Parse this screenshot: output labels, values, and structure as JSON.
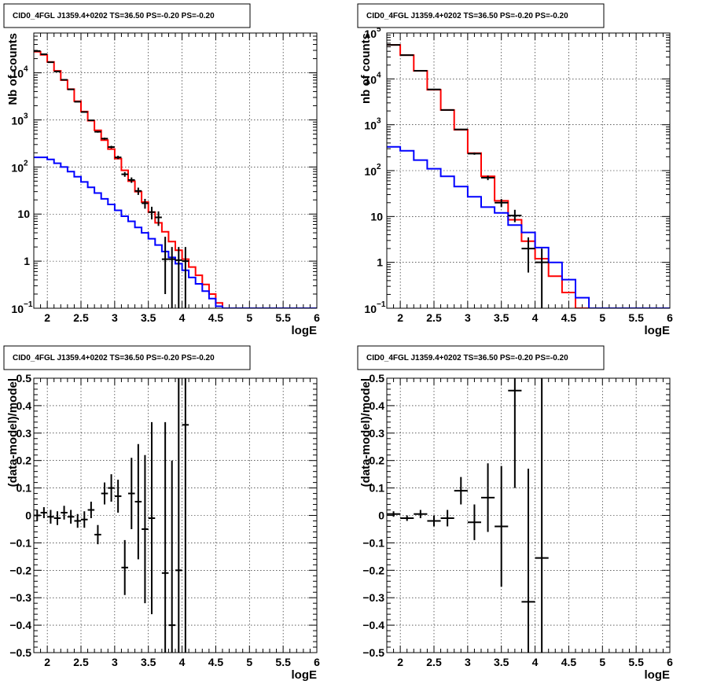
{
  "chart_data": [
    {
      "type": "line",
      "title": "CID0_4FGL J1359.4+0202 TS=36.50 PS=-0.20 PS=-0.20",
      "xlabel": "logE",
      "ylabel": "Nb of counts",
      "ylog": true,
      "xlim": [
        1.8,
        6.0
      ],
      "ylim": [
        0.1,
        70000
      ],
      "xticks": [
        "2",
        "2.5",
        "3",
        "3.5",
        "4",
        "4.5",
        "5",
        "5.5",
        "6"
      ],
      "yticks": [
        {
          "value": 0.1,
          "mant": "10",
          "exp": "−1"
        },
        {
          "value": 1,
          "mant": "1",
          "exp": ""
        },
        {
          "value": 10,
          "mant": "10",
          "exp": ""
        },
        {
          "value": 100,
          "mant": "10",
          "exp": "2"
        },
        {
          "value": 1000,
          "mant": "10",
          "exp": "3"
        },
        {
          "value": 10000,
          "mant": "10",
          "exp": "4"
        }
      ],
      "grid": true,
      "series": [
        {
          "color": "#ff0000",
          "style": "step",
          "edges": [
            1.8,
            1.9,
            2.0,
            2.1,
            2.2,
            2.3,
            2.4,
            2.5,
            2.6,
            2.7,
            2.8,
            2.9,
            3.0,
            3.1,
            3.2,
            3.3,
            3.4,
            3.5,
            3.6,
            3.7,
            3.8,
            3.9,
            4.0,
            4.1,
            4.2,
            4.3,
            4.4,
            4.5,
            4.6,
            4.7,
            4.8,
            4.9,
            5.0,
            5.1,
            5.2,
            5.3,
            5.4,
            5.5,
            5.6,
            5.7,
            5.8,
            5.9,
            6.0
          ],
          "values": [
            28000,
            24000,
            17000,
            11000,
            7000,
            4500,
            2500,
            1500,
            960,
            600,
            370,
            240,
            150,
            85,
            50,
            30,
            18,
            11,
            6.5,
            4.2,
            2.6,
            1.7,
            1.1,
            0.75,
            0.5,
            0.32,
            0.2,
            0.13,
            0.1,
            0.1,
            0.1,
            0.1,
            0.1,
            0.1,
            0.1,
            0.1,
            0.1,
            0.1,
            0.1,
            0.1,
            0.1,
            0.1
          ]
        },
        {
          "color": "#0000ff",
          "style": "step",
          "edges": [
            1.8,
            1.9,
            2.0,
            2.1,
            2.2,
            2.3,
            2.4,
            2.5,
            2.6,
            2.7,
            2.8,
            2.9,
            3.0,
            3.1,
            3.2,
            3.3,
            3.4,
            3.5,
            3.6,
            3.7,
            3.8,
            3.9,
            4.0,
            4.1,
            4.2,
            4.3,
            4.4,
            4.5,
            4.6,
            4.7,
            4.8,
            4.9,
            5.0,
            5.1,
            5.2,
            5.3,
            5.4,
            5.5,
            5.6,
            5.7,
            5.8,
            5.9,
            6.0
          ],
          "values": [
            160,
            160,
            145,
            120,
            100,
            80,
            62,
            48,
            37,
            28,
            21,
            16,
            12,
            9,
            7,
            5.2,
            4,
            3,
            2.2,
            1.6,
            1.2,
            0.88,
            0.64,
            0.45,
            0.33,
            0.23,
            0.16,
            0.11,
            0.1,
            0.1,
            0.1,
            0.1,
            0.1,
            0.1,
            0.1,
            0.1,
            0.1,
            0.1,
            0.1,
            0.1,
            0.1,
            0.1
          ]
        }
      ],
      "points": [
        {
          "x": 1.85,
          "y": 29000,
          "xerr": 0.05,
          "lo": 28700,
          "hi": 29300
        },
        {
          "x": 1.95,
          "y": 24800,
          "xerr": 0.05,
          "lo": 24500,
          "hi": 25100
        },
        {
          "x": 2.05,
          "y": 16800,
          "xerr": 0.05,
          "lo": 16500,
          "hi": 17100
        },
        {
          "x": 2.15,
          "y": 10700,
          "xerr": 0.05,
          "lo": 10500,
          "hi": 10900
        },
        {
          "x": 2.25,
          "y": 7100,
          "xerr": 0.05,
          "lo": 6950,
          "hi": 7250
        },
        {
          "x": 2.35,
          "y": 4450,
          "xerr": 0.05,
          "lo": 4350,
          "hi": 4550
        },
        {
          "x": 2.45,
          "y": 2430,
          "xerr": 0.05,
          "lo": 2380,
          "hi": 2480
        },
        {
          "x": 2.55,
          "y": 1470,
          "xerr": 0.05,
          "lo": 1430,
          "hi": 1510
        },
        {
          "x": 2.65,
          "y": 980,
          "xerr": 0.05,
          "lo": 950,
          "hi": 1010
        },
        {
          "x": 2.75,
          "y": 560,
          "xerr": 0.05,
          "lo": 535,
          "hi": 585
        },
        {
          "x": 2.85,
          "y": 400,
          "xerr": 0.05,
          "lo": 380,
          "hi": 420
        },
        {
          "x": 2.95,
          "y": 265,
          "xerr": 0.05,
          "lo": 248,
          "hi": 282
        },
        {
          "x": 3.05,
          "y": 160,
          "xerr": 0.05,
          "lo": 147,
          "hi": 173
        },
        {
          "x": 3.15,
          "y": 70,
          "xerr": 0.05,
          "lo": 62,
          "hi": 78
        },
        {
          "x": 3.25,
          "y": 53,
          "xerr": 0.05,
          "lo": 46,
          "hi": 60
        },
        {
          "x": 3.35,
          "y": 31,
          "xerr": 0.05,
          "lo": 25.5,
          "hi": 36.5
        },
        {
          "x": 3.45,
          "y": 17,
          "xerr": 0.05,
          "lo": 13,
          "hi": 21
        },
        {
          "x": 3.55,
          "y": 11,
          "xerr": 0.05,
          "lo": 7.7,
          "hi": 14.3
        },
        {
          "x": 3.65,
          "y": 8.5,
          "xerr": 0.05,
          "lo": 5.6,
          "hi": 11.4
        },
        {
          "x": 3.75,
          "y": 1.1,
          "xerr": 0.05,
          "lo": 0.2,
          "hi": 3.3
        },
        {
          "x": 3.85,
          "y": 1.1,
          "xerr": 0.05,
          "lo": 0.1,
          "hi": 2.0
        },
        {
          "x": 3.95,
          "y": 1.05,
          "xerr": 0.05,
          "lo": 0.1,
          "hi": 2.0
        },
        {
          "x": 4.05,
          "y": 1.0,
          "xerr": 0.05,
          "lo": 0.1,
          "hi": 2.0
        }
      ]
    },
    {
      "type": "line",
      "title": "CID0_4FGL J1359.4+0202 TS=36.50 PS=-0.20 PS=-0.20",
      "xlabel": "logE",
      "ylabel": "nb of counts",
      "ylog": true,
      "xlim": [
        1.8,
        6.0
      ],
      "ylim": [
        0.1,
        100000
      ],
      "xticks": [
        "2",
        "2.5",
        "3",
        "3.5",
        "4",
        "4.5",
        "5",
        "5.5",
        "6"
      ],
      "yticks": [
        {
          "value": 0.1,
          "mant": "10",
          "exp": "−1"
        },
        {
          "value": 1,
          "mant": "1",
          "exp": ""
        },
        {
          "value": 10,
          "mant": "10",
          "exp": ""
        },
        {
          "value": 100,
          "mant": "10",
          "exp": "2"
        },
        {
          "value": 1000,
          "mant": "10",
          "exp": "3"
        },
        {
          "value": 10000,
          "mant": "10",
          "exp": "4"
        },
        {
          "value": 100000,
          "mant": "10",
          "exp": "5"
        }
      ],
      "grid": true,
      "series": [
        {
          "color": "#ff0000",
          "style": "step",
          "edges": [
            1.8,
            2.0,
            2.2,
            2.4,
            2.6,
            2.8,
            3.0,
            3.2,
            3.4,
            3.6,
            3.8,
            4.0,
            4.2,
            4.4,
            4.6,
            4.8,
            5.0,
            5.2,
            5.4,
            5.6,
            5.8,
            6.0
          ],
          "values": [
            55000,
            33000,
            15000,
            5800,
            2100,
            780,
            240,
            75,
            22,
            8.5,
            2.9,
            1.2,
            0.5,
            0.22,
            0.1,
            0.1,
            0.1,
            0.1,
            0.1,
            0.1,
            0.1
          ]
        },
        {
          "color": "#0000ff",
          "style": "step",
          "edges": [
            1.8,
            2.0,
            2.2,
            2.4,
            2.6,
            2.8,
            3.0,
            3.2,
            3.4,
            3.6,
            3.8,
            4.0,
            4.2,
            4.4,
            4.6,
            4.8,
            5.0,
            5.2,
            5.4,
            5.6,
            5.8,
            6.0
          ],
          "values": [
            330,
            270,
            170,
            110,
            75,
            45,
            27,
            16,
            12,
            6.5,
            4.5,
            2.1,
            1.0,
            0.42,
            0.17,
            0.1,
            0.1,
            0.1,
            0.1,
            0.1,
            0.1
          ]
        }
      ],
      "points": [
        {
          "x": 1.9,
          "y": 55000,
          "xerr": 0.1,
          "lo": 54500,
          "hi": 55500
        },
        {
          "x": 2.1,
          "y": 33000,
          "xerr": 0.1,
          "lo": 32600,
          "hi": 33400
        },
        {
          "x": 2.3,
          "y": 15000,
          "xerr": 0.1,
          "lo": 14800,
          "hi": 15200
        },
        {
          "x": 2.5,
          "y": 5900,
          "xerr": 0.1,
          "lo": 5800,
          "hi": 6000
        },
        {
          "x": 2.7,
          "y": 2100,
          "xerr": 0.1,
          "lo": 2050,
          "hi": 2150
        },
        {
          "x": 2.9,
          "y": 790,
          "xerr": 0.1,
          "lo": 765,
          "hi": 815
        },
        {
          "x": 3.1,
          "y": 235,
          "xerr": 0.1,
          "lo": 222,
          "hi": 248
        },
        {
          "x": 3.3,
          "y": 70,
          "xerr": 0.1,
          "lo": 62,
          "hi": 78
        },
        {
          "x": 3.5,
          "y": 20,
          "xerr": 0.1,
          "lo": 16,
          "hi": 24
        },
        {
          "x": 3.7,
          "y": 10.5,
          "xerr": 0.1,
          "lo": 7.5,
          "hi": 14
        },
        {
          "x": 3.9,
          "y": 2.0,
          "xerr": 0.1,
          "lo": 0.6,
          "hi": 3.5
        },
        {
          "x": 4.1,
          "y": 1.0,
          "xerr": 0.1,
          "lo": 0.1,
          "hi": 2.0
        }
      ]
    },
    {
      "type": "scatter",
      "title": "CID0_4FGL J1359.4+0202 TS=36.50 PS=-0.20 PS=-0.20",
      "xlabel": "logE",
      "ylabel": "(data-model)/model",
      "ylog": false,
      "xlim": [
        1.8,
        6.0
      ],
      "ylim": [
        -0.5,
        0.5
      ],
      "xticks": [
        "2",
        "2.5",
        "3",
        "3.5",
        "4",
        "4.5",
        "5",
        "5.5",
        "6"
      ],
      "yticks": [
        "−0.5",
        "−0.4",
        "−0.3",
        "−0.2",
        "−0.1",
        "0",
        "0.1",
        "0.2",
        "0.3",
        "0.4",
        "0.5"
      ],
      "grid": true,
      "points": [
        {
          "x": 1.85,
          "y": 0.0,
          "xerr": 0.05,
          "lo": -0.02,
          "hi": 0.02
        },
        {
          "x": 1.95,
          "y": 0.01,
          "xerr": 0.05,
          "lo": -0.01,
          "hi": 0.03
        },
        {
          "x": 2.05,
          "y": -0.005,
          "xerr": 0.05,
          "lo": -0.03,
          "hi": 0.02
        },
        {
          "x": 2.15,
          "y": -0.01,
          "xerr": 0.05,
          "lo": -0.035,
          "hi": 0.015
        },
        {
          "x": 2.25,
          "y": 0.01,
          "xerr": 0.05,
          "lo": -0.015,
          "hi": 0.035
        },
        {
          "x": 2.35,
          "y": -0.005,
          "xerr": 0.05,
          "lo": -0.03,
          "hi": 0.02
        },
        {
          "x": 2.45,
          "y": -0.02,
          "xerr": 0.05,
          "lo": -0.045,
          "hi": 0.005
        },
        {
          "x": 2.55,
          "y": -0.015,
          "xerr": 0.05,
          "lo": -0.045,
          "hi": 0.015
        },
        {
          "x": 2.65,
          "y": 0.02,
          "xerr": 0.05,
          "lo": -0.01,
          "hi": 0.05
        },
        {
          "x": 2.75,
          "y": -0.07,
          "xerr": 0.05,
          "lo": -0.105,
          "hi": -0.035
        },
        {
          "x": 2.85,
          "y": 0.08,
          "xerr": 0.05,
          "lo": 0.04,
          "hi": 0.12
        },
        {
          "x": 2.95,
          "y": 0.1,
          "xerr": 0.05,
          "lo": 0.05,
          "hi": 0.15
        },
        {
          "x": 3.05,
          "y": 0.07,
          "xerr": 0.05,
          "lo": 0.01,
          "hi": 0.13
        },
        {
          "x": 3.15,
          "y": -0.19,
          "xerr": 0.05,
          "lo": -0.29,
          "hi": -0.09
        },
        {
          "x": 3.25,
          "y": 0.08,
          "xerr": 0.05,
          "lo": -0.05,
          "hi": 0.21
        },
        {
          "x": 3.35,
          "y": 0.05,
          "xerr": 0.05,
          "lo": -0.16,
          "hi": 0.26
        },
        {
          "x": 3.45,
          "y": -0.05,
          "xerr": 0.05,
          "lo": -0.32,
          "hi": 0.22
        },
        {
          "x": 3.55,
          "y": -0.01,
          "xerr": 0.05,
          "lo": -0.36,
          "hi": 0.34
        },
        {
          "x": 3.75,
          "y": -0.21,
          "xerr": 0.05,
          "lo": -0.5,
          "hi": 0.34
        },
        {
          "x": 3.85,
          "y": -0.4,
          "xerr": 0.05,
          "lo": -0.5,
          "hi": 0.2
        },
        {
          "x": 3.95,
          "y": -0.2,
          "xerr": 0.05,
          "lo": -0.5,
          "hi": 0.5
        },
        {
          "x": 4.05,
          "y": 0.33,
          "xerr": 0.05,
          "lo": -0.5,
          "hi": 0.5
        }
      ]
    },
    {
      "type": "scatter",
      "title": "CID0_4FGL J1359.4+0202 TS=36.50 PS=-0.20 PS=-0.20",
      "xlabel": "logE",
      "ylabel": "(data-model)/model",
      "ylog": false,
      "xlim": [
        1.8,
        6.0
      ],
      "ylim": [
        -0.5,
        0.5
      ],
      "xticks": [
        "2",
        "2.5",
        "3",
        "3.5",
        "4",
        "4.5",
        "5",
        "5.5",
        "6"
      ],
      "yticks": [
        "−0.5",
        "−0.4",
        "−0.3",
        "−0.2",
        "−0.1",
        "0",
        "0.1",
        "0.2",
        "0.3",
        "0.4",
        "0.5"
      ],
      "grid": true,
      "points": [
        {
          "x": 1.9,
          "y": 0.005,
          "xerr": 0.1,
          "lo": -0.005,
          "hi": 0.015
        },
        {
          "x": 2.1,
          "y": -0.01,
          "xerr": 0.1,
          "lo": -0.02,
          "hi": 0.0
        },
        {
          "x": 2.3,
          "y": 0.005,
          "xerr": 0.1,
          "lo": -0.01,
          "hi": 0.02
        },
        {
          "x": 2.5,
          "y": -0.02,
          "xerr": 0.1,
          "lo": -0.04,
          "hi": 0.0
        },
        {
          "x": 2.7,
          "y": -0.01,
          "xerr": 0.1,
          "lo": -0.04,
          "hi": 0.02
        },
        {
          "x": 2.9,
          "y": 0.09,
          "xerr": 0.1,
          "lo": 0.04,
          "hi": 0.14
        },
        {
          "x": 3.1,
          "y": -0.025,
          "xerr": 0.1,
          "lo": -0.09,
          "hi": 0.04
        },
        {
          "x": 3.3,
          "y": 0.065,
          "xerr": 0.1,
          "lo": -0.06,
          "hi": 0.19
        },
        {
          "x": 3.5,
          "y": -0.04,
          "xerr": 0.1,
          "lo": -0.26,
          "hi": 0.18
        },
        {
          "x": 3.7,
          "y": 0.455,
          "xerr": 0.1,
          "lo": 0.1,
          "hi": 0.5
        },
        {
          "x": 3.9,
          "y": -0.315,
          "xerr": 0.1,
          "lo": -0.5,
          "hi": 0.17
        },
        {
          "x": 4.1,
          "y": -0.155,
          "xerr": 0.1,
          "lo": -0.5,
          "hi": 0.5
        }
      ]
    }
  ]
}
